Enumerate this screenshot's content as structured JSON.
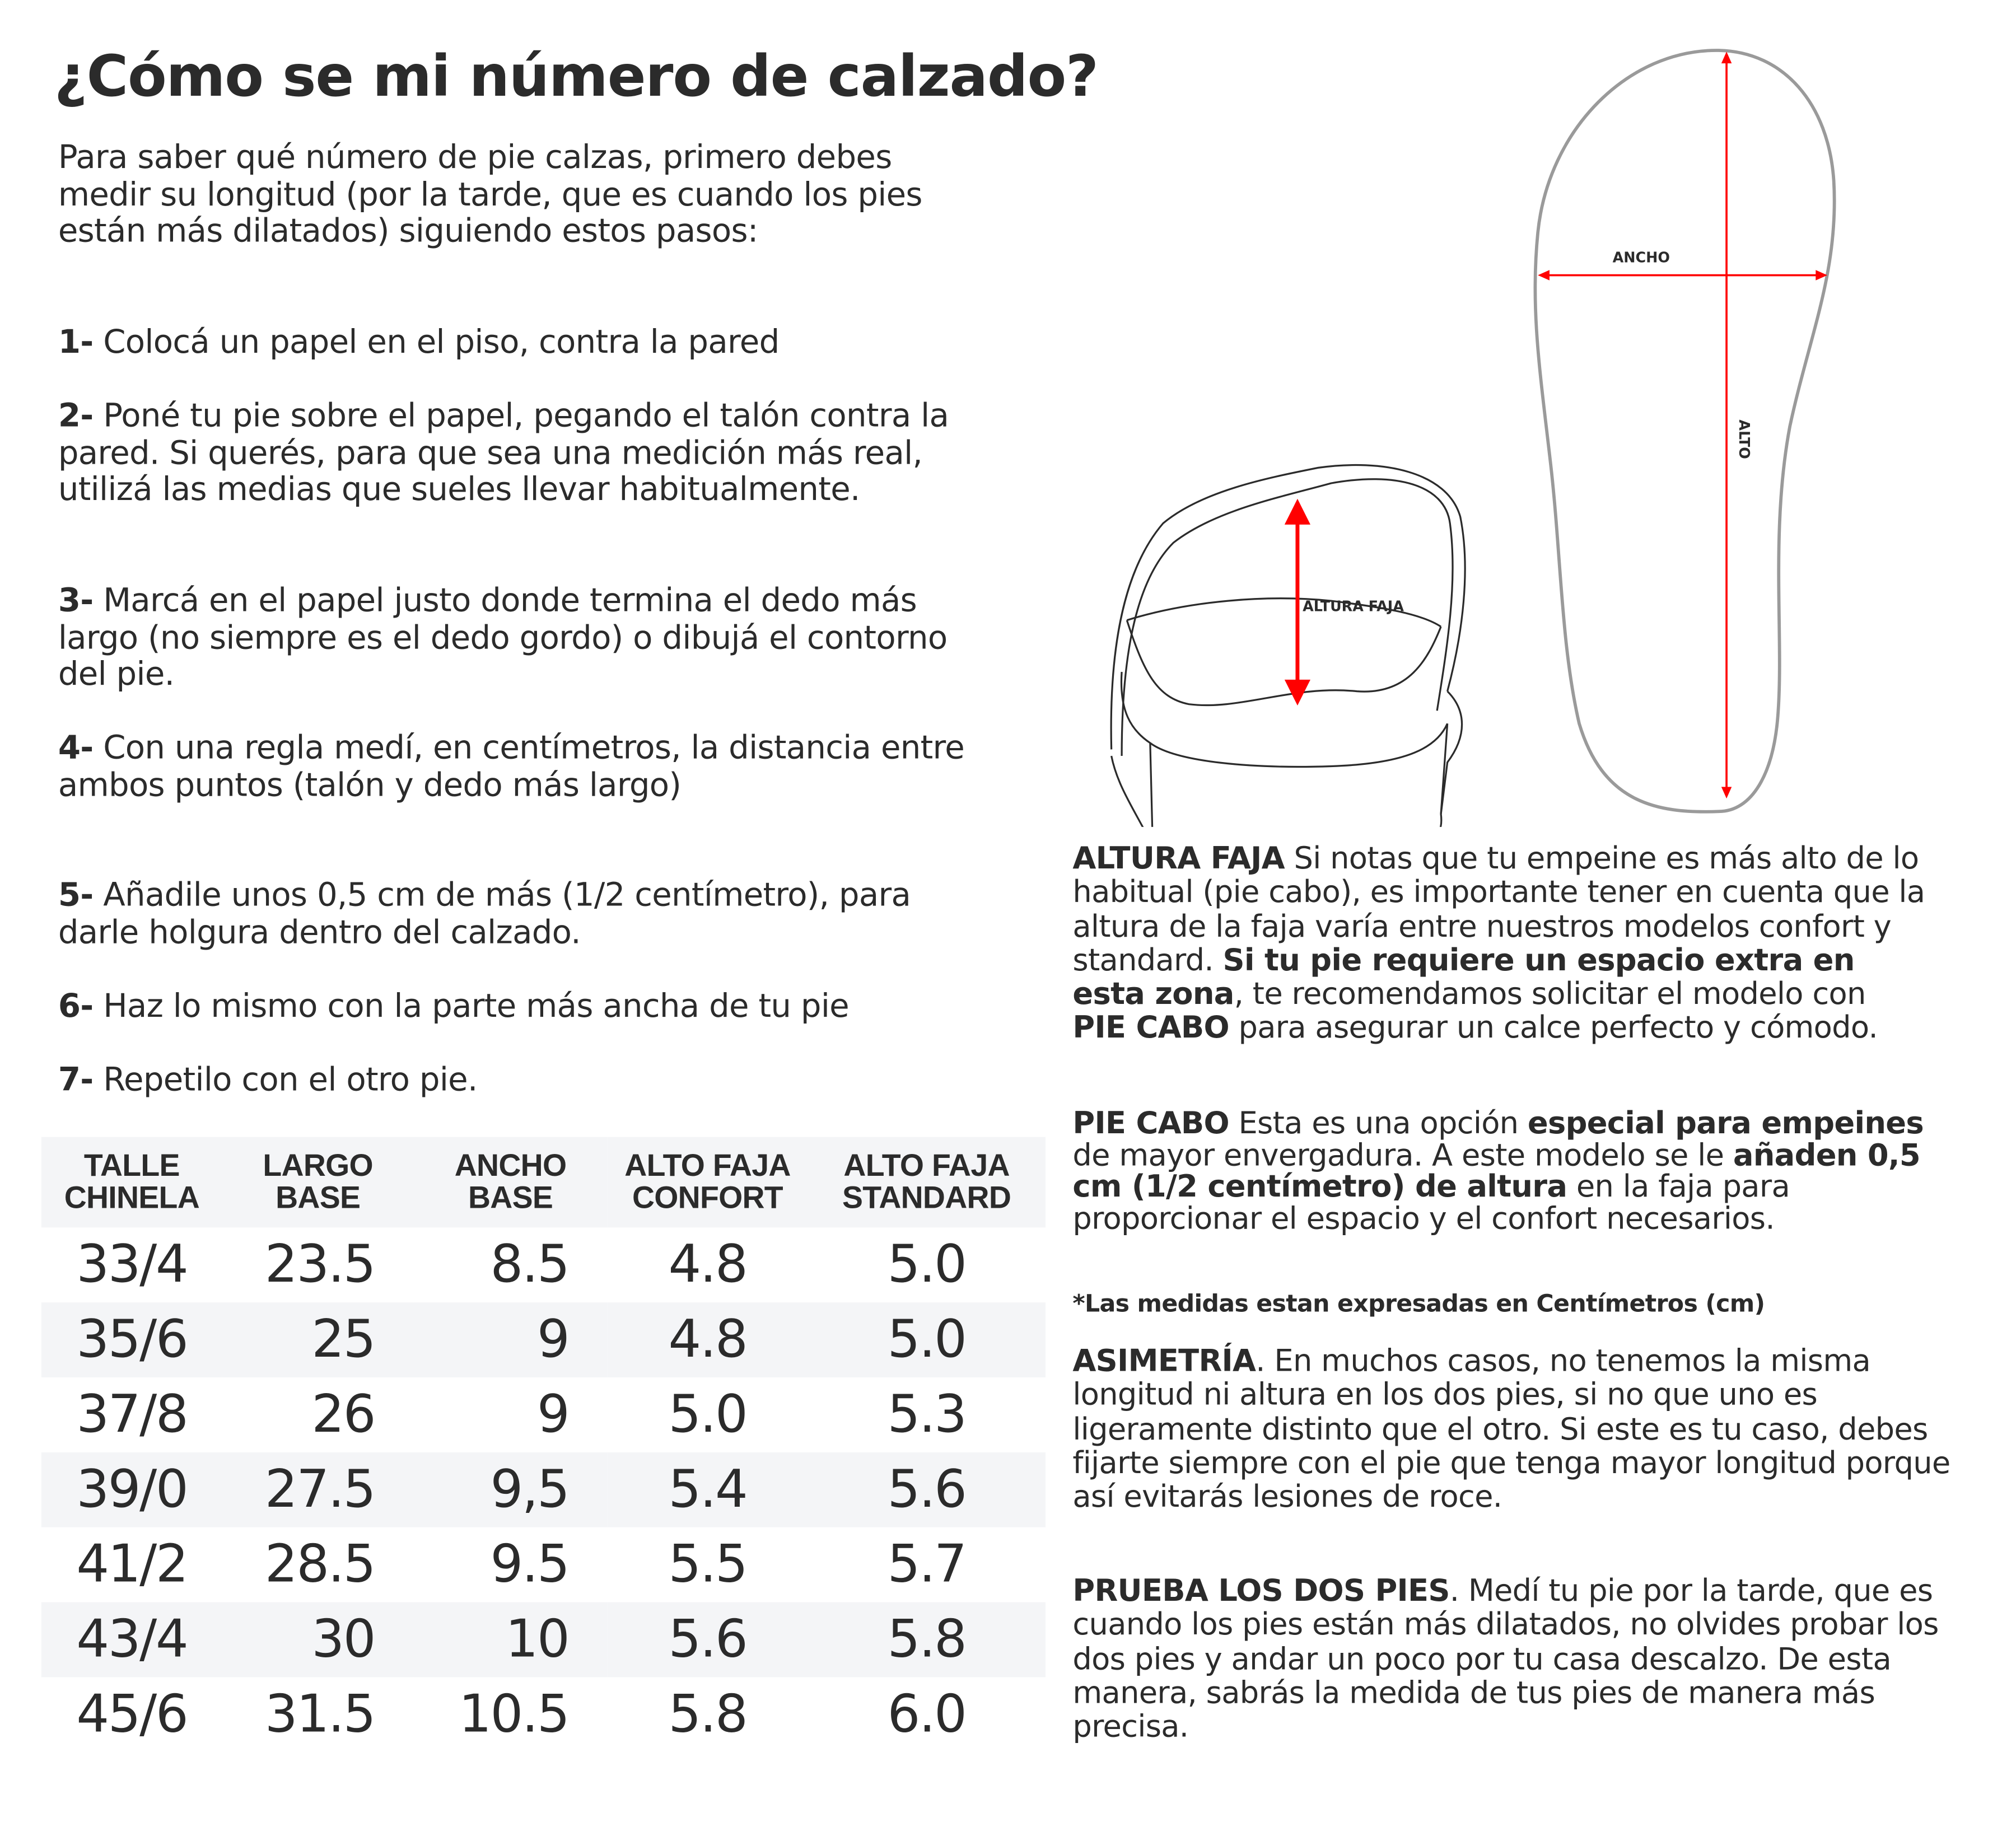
{
  "title": "¿Cómo se mi número de calzado?",
  "intro": "Para saber qué número de pie calzas, primero debes medir su longitud (por la tarde, que es cuando los pies están más dilatados) siguiendo estos pasos:",
  "steps": [
    {
      "num": "1-",
      "text": "Colocá un papel en el piso, contra la pared"
    },
    {
      "num": "2-",
      "text": "Poné tu pie sobre el papel, pegando el talón contra la pared. Si querés, para que sea una medición más real, utilizá las medias que sueles llevar habitualmente."
    },
    {
      "num": "3-",
      "text": "Marcá en el papel justo donde termina el dedo más largo (no siempre es el dedo gordo) o dibujá el contorno del pie."
    },
    {
      "num": "4-",
      "text": "Con una regla medí, en centímetros, la distancia entre ambos puntos (talón y dedo más largo)"
    },
    {
      "num": "5-",
      "text": "Añadile unos 0,5 cm de más (1/2 centímetro), para darle holgura dentro del calzado."
    },
    {
      "num": "6-",
      "text": "Haz lo mismo con la parte más ancha de tu pie"
    },
    {
      "num": "7-",
      "text": "Repetilo con el otro pie."
    }
  ],
  "table": {
    "headers": [
      [
        "TALLE",
        "CHINELA"
      ],
      [
        "LARGO",
        "BASE"
      ],
      [
        "ANCHO",
        "BASE"
      ],
      [
        "ALTO FAJA",
        "CONFORT"
      ],
      [
        "ALTO FAJA",
        "STANDARD"
      ]
    ],
    "rows": [
      [
        "33/4",
        "23.5",
        "8.5",
        "4.8",
        "5.0"
      ],
      [
        "35/6",
        "25",
        "9",
        "4.8",
        "5.0"
      ],
      [
        "37/8",
        "26",
        "9",
        "5.0",
        "5.3"
      ],
      [
        "39/0",
        "27.5",
        "9,5",
        "5.4",
        "5.6"
      ],
      [
        "41/2",
        "28.5",
        "9.5",
        "5.5",
        "5.7"
      ],
      [
        "43/4",
        "30",
        "10",
        "5.6",
        "5.8"
      ],
      [
        "45/6",
        "31.5",
        "10.5",
        "5.8",
        "6.0"
      ]
    ]
  },
  "diagram": {
    "sandal_label": "ALTURA FAJA",
    "insole_width_label": "ANCHO",
    "insole_length_label": "ALTO",
    "arrow_color": "#ff0000",
    "insole_outline_color": "#9a9a9a"
  },
  "info": {
    "altura": {
      "head": "ALTURA FAJA",
      "t1": " Si notas que tu empeine es más alto de lo habitual (pie cabo), es importante tener en cuenta que la altura de la faja varía entre nuestros modelos confort y standard.",
      "b1": "Si tu pie requiere un espacio extra en esta zona",
      "t2": ", te recomendamos solicitar el modelo con ",
      "b2": "PIE CABO",
      "t3": " para asegurar un calce perfecto y cómodo."
    },
    "piecabo": {
      "head": "PIE CABO",
      "t1": " Esta es una opción ",
      "b1": "especial para empeines",
      "t2": " de mayor envergadura. A este modelo se le ",
      "b2": "añaden 0,5 cm (1/2 centímetro) de altura",
      "t3": " en la faja para proporcionar el espacio y el confort necesarios."
    },
    "note": "*Las medidas estan expresadas en Centímetros (cm)",
    "asimetria": {
      "head": "ASIMETRÍA",
      "t1": ". En muchos casos, no tenemos la misma longitud ni altura en los dos pies, si no que uno es ligeramente distinto que el otro. Si este es tu caso, debes fijarte siempre con el pie que tenga mayor longitud porque así evitarás lesiones de roce."
    },
    "prueba": {
      "head": "PRUEBA LOS DOS PIES",
      "t1": ". Medí tu pie por la tarde, que es cuando los pies están más dilatados, no olvides probar los dos pies y andar un poco por tu casa descalzo. De esta manera, sabrás la medida de tus pies de manera más precisa."
    }
  }
}
